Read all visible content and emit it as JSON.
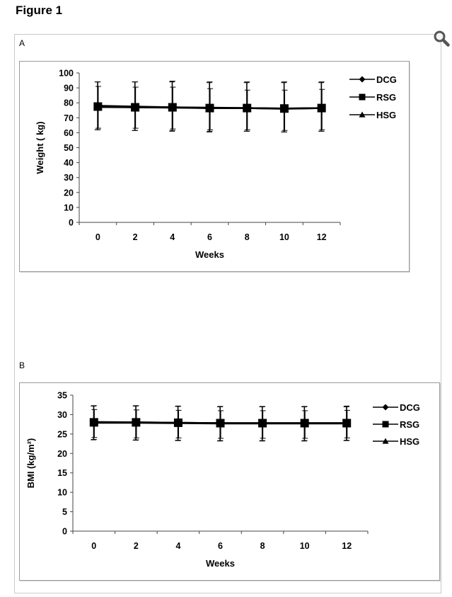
{
  "figure": {
    "title": "Figure 1",
    "zoom_icon": "magnifier-icon"
  },
  "chart_data": [
    {
      "panel": "A",
      "type": "line",
      "x": [
        0,
        2,
        4,
        6,
        8,
        10,
        12
      ],
      "x_tick_labels": [
        "0",
        "2",
        "4",
        "6",
        "8",
        "10",
        "12"
      ],
      "y_tick_labels": [
        "0",
        "10",
        "20",
        "30",
        "40",
        "50",
        "60",
        "70",
        "80",
        "90",
        "100"
      ],
      "xlabel": "Weeks",
      "ylabel": "Weight ( kg)",
      "ylim": [
        0,
        100
      ],
      "legend_position": "top-right",
      "legend": [
        "DCG",
        "RSG",
        "HSG"
      ],
      "series": [
        {
          "name": "DCG",
          "marker": "diamond",
          "values": [
            78,
            77.5,
            77,
            76.8,
            76.5,
            76.2,
            76.5
          ],
          "err_upper": [
            94,
            94,
            94,
            93.5,
            93.5,
            93.5,
            93.5
          ],
          "err_lower": [
            62,
            61.5,
            61,
            60.5,
            61,
            60.5,
            61
          ]
        },
        {
          "name": "RSG",
          "marker": "square",
          "values": [
            77.5,
            77,
            77,
            76.5,
            76.5,
            76.2,
            76.5
          ],
          "err_upper": [
            94,
            94,
            94.5,
            94,
            94,
            94,
            94
          ],
          "err_lower": [
            62,
            61.5,
            61.5,
            61,
            61,
            60.5,
            61
          ]
        },
        {
          "name": "HSG",
          "marker": "triangle",
          "values": [
            77.2,
            77,
            76.8,
            76.5,
            76.5,
            76,
            76.5
          ],
          "err_upper": [
            91,
            90.5,
            90.5,
            89.5,
            88.5,
            88.5,
            89
          ],
          "err_lower": [
            63,
            63,
            62.5,
            62,
            62,
            61.5,
            62
          ]
        }
      ]
    },
    {
      "panel": "B",
      "type": "line",
      "x": [
        0,
        2,
        4,
        6,
        8,
        10,
        12
      ],
      "x_tick_labels": [
        "0",
        "2",
        "4",
        "6",
        "8",
        "10",
        "12"
      ],
      "y_tick_labels": [
        "0",
        "5",
        "10",
        "15",
        "20",
        "25",
        "30",
        "35"
      ],
      "xlabel": "Weeks",
      "ylabel": "BMI (kg/m²)",
      "ylim": [
        0,
        35
      ],
      "legend_position": "top-right",
      "legend": [
        "DCG",
        "RSG",
        "HSG"
      ],
      "series": [
        {
          "name": "DCG",
          "marker": "diamond",
          "values": [
            28.1,
            28,
            27.9,
            27.8,
            27.8,
            27.8,
            27.8
          ],
          "err_upper": [
            32.2,
            32.2,
            32.1,
            32,
            32,
            32,
            32
          ],
          "err_lower": [
            23.5,
            23.4,
            23.3,
            23.2,
            23.2,
            23.2,
            23.3
          ]
        },
        {
          "name": "RSG",
          "marker": "square",
          "values": [
            28,
            28,
            27.9,
            27.8,
            27.8,
            27.8,
            27.8
          ],
          "err_upper": [
            32.3,
            32.3,
            32.2,
            32.1,
            32.1,
            32.1,
            32.2
          ],
          "err_lower": [
            23.6,
            23.5,
            23.4,
            23.3,
            23.3,
            23.3,
            23.4
          ]
        },
        {
          "name": "HSG",
          "marker": "triangle",
          "values": [
            27.9,
            27.9,
            27.8,
            27.7,
            27.7,
            27.7,
            27.7
          ],
          "err_upper": [
            31.3,
            31.2,
            31.1,
            31,
            31,
            31,
            31.1
          ],
          "err_lower": [
            24.1,
            24,
            24,
            23.9,
            23.9,
            23.9,
            24
          ]
        }
      ]
    }
  ]
}
